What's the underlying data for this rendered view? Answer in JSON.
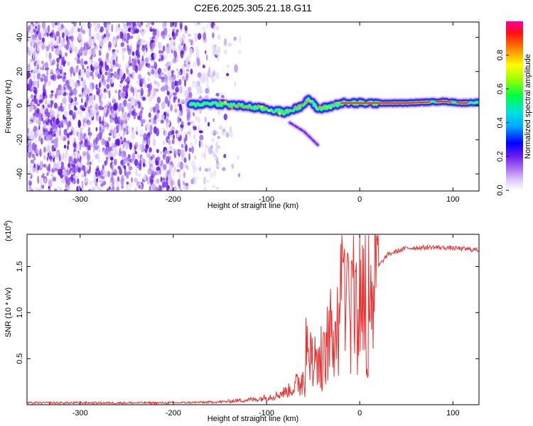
{
  "title": "C2E6.2025.305.21.18.G11",
  "chart_data": [
    {
      "type": "heatmap",
      "title": "C2E6.2025.305.21.18.G11",
      "xlabel": "Height of straight line (km)",
      "ylabel": "Frequency (Hz)",
      "xlim": [
        -357,
        128
      ],
      "ylim": [
        -50,
        49
      ],
      "x_ticks": [
        -300,
        -200,
        -100,
        0,
        100
      ],
      "y_ticks": [
        -40,
        -20,
        0,
        20,
        40
      ],
      "colorbar": {
        "label": "Normalized spectral amplitude",
        "range": [
          0,
          1
        ],
        "ticks": [
          0.0,
          0.2,
          0.4,
          0.6,
          0.8
        ]
      },
      "ridge_track": [
        {
          "x": -180,
          "y": 0.5
        },
        {
          "x": -160,
          "y": 1.5
        },
        {
          "x": -140,
          "y": 0.5
        },
        {
          "x": -120,
          "y": -0.5
        },
        {
          "x": -100,
          "y": -2
        },
        {
          "x": -80,
          "y": -4
        },
        {
          "x": -65,
          "y": -1
        },
        {
          "x": -55,
          "y": 4
        },
        {
          "x": -45,
          "y": -2
        },
        {
          "x": -35,
          "y": -1
        },
        {
          "x": -20,
          "y": 1.5
        },
        {
          "x": 0,
          "y": 1.5
        },
        {
          "x": 50,
          "y": 1.5
        },
        {
          "x": 90,
          "y": 2.5
        },
        {
          "x": 110,
          "y": 1.5
        },
        {
          "x": 128,
          "y": 2
        }
      ],
      "side_branch": [
        {
          "x": -75,
          "y": -10
        },
        {
          "x": -60,
          "y": -15
        },
        {
          "x": -45,
          "y": -23
        }
      ]
    },
    {
      "type": "line",
      "xlabel": "Height of straight line (km)",
      "ylabel": "SNR (10 * v/v)",
      "y_scale_label": "(x10",
      "y_scale_exponent": "4",
      "xlim": [
        -357,
        128
      ],
      "ylim": [
        0,
        1.85
      ],
      "x_ticks": [
        -300,
        -200,
        -100,
        0,
        100
      ],
      "y_ticks": [
        0.5,
        1.0,
        1.5
      ],
      "series": [
        {
          "name": "SNR",
          "color": "#e83030",
          "envelope": [
            {
              "x": -357,
              "y": 0.02
            },
            {
              "x": -200,
              "y": 0.02
            },
            {
              "x": -150,
              "y": 0.03
            },
            {
              "x": -110,
              "y": 0.06
            },
            {
              "x": -90,
              "y": 0.1
            },
            {
              "x": -70,
              "y": 0.18
            },
            {
              "x": -60,
              "y": 0.3
            },
            {
              "x": -50,
              "y": 0.45
            },
            {
              "x": -40,
              "y": 0.55
            },
            {
              "x": -30,
              "y": 0.75
            },
            {
              "x": -20,
              "y": 1.1
            },
            {
              "x": -10,
              "y": 1.2
            },
            {
              "x": 0,
              "y": 1.22
            },
            {
              "x": 10,
              "y": 1.3
            },
            {
              "x": 20,
              "y": 1.5
            },
            {
              "x": 30,
              "y": 1.63
            },
            {
              "x": 50,
              "y": 1.7
            },
            {
              "x": 80,
              "y": 1.71
            },
            {
              "x": 100,
              "y": 1.7
            },
            {
              "x": 128,
              "y": 1.68
            }
          ],
          "peaks": [
            {
              "x": -57,
              "y": 1.0
            },
            {
              "x": -52,
              "y": 0.8
            },
            {
              "x": -38,
              "y": 0.8
            },
            {
              "x": -17,
              "y": 1.77
            },
            {
              "x": -13,
              "y": 1.75
            },
            {
              "x": -8,
              "y": 1.6
            },
            {
              "x": 8,
              "y": 0.33
            }
          ]
        }
      ]
    }
  ]
}
